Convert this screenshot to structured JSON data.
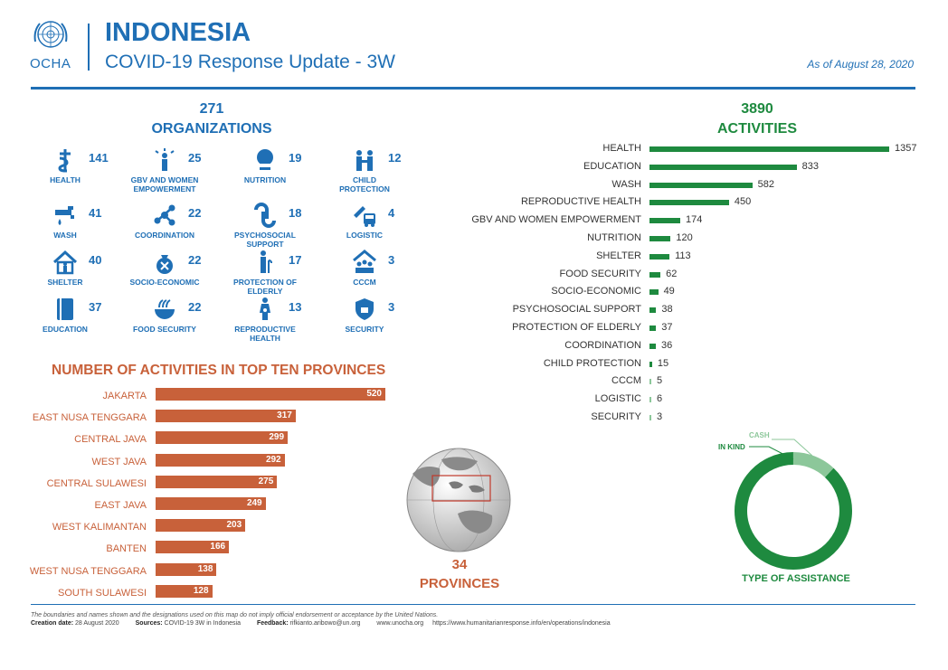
{
  "header": {
    "logo_text": "OCHA",
    "country": "INDONESIA",
    "subtitle": "COVID-19 Response Update - 3W",
    "date": "As of August 28, 2020"
  },
  "organizations": {
    "total": "271",
    "title": "ORGANIZATIONS",
    "items": [
      {
        "label": "HEALTH",
        "count": "141",
        "icon": "health-icon"
      },
      {
        "label": "GBV AND WOMEN EMPOWERMENT",
        "count": "25",
        "icon": "gbv-icon"
      },
      {
        "label": "NUTRITION",
        "count": "19",
        "icon": "nutrition-icon"
      },
      {
        "label": "CHILD PROTECTION",
        "count": "12",
        "icon": "child-protection-icon"
      },
      {
        "label": "WASH",
        "count": "41",
        "icon": "wash-icon"
      },
      {
        "label": "COORDINATION",
        "count": "22",
        "icon": "coordination-icon"
      },
      {
        "label": "PSYCHOSOCIAL SUPPORT",
        "count": "18",
        "icon": "psychosocial-icon"
      },
      {
        "label": "LOGISTIC",
        "count": "4",
        "icon": "logistic-icon"
      },
      {
        "label": "SHELTER",
        "count": "40",
        "icon": "shelter-icon"
      },
      {
        "label": "SOCIO-ECONOMIC",
        "count": "22",
        "icon": "socio-economic-icon"
      },
      {
        "label": "PROTECTION OF ELDERLY",
        "count": "17",
        "icon": "elderly-icon"
      },
      {
        "label": "CCCM",
        "count": "3",
        "icon": "cccm-icon"
      },
      {
        "label": "EDUCATION",
        "count": "37",
        "icon": "education-icon"
      },
      {
        "label": "FOOD SECURITY",
        "count": "22",
        "icon": "food-security-icon"
      },
      {
        "label": "REPRODUCTIVE HEALTH",
        "count": "13",
        "icon": "reproductive-health-icon"
      },
      {
        "label": "SECURITY",
        "count": "3",
        "icon": "security-icon"
      }
    ]
  },
  "activities": {
    "total": "3890",
    "title": "ACTIVITIES"
  },
  "provinces": {
    "title": "NUMBER OF ACTIVITIES IN TOP TEN PROVINCES",
    "count": "34",
    "label": "PROVINCES"
  },
  "assistance": {
    "title": "TYPE OF ASSISTANCE",
    "cash_label": "CASH",
    "inkind_label": "IN KIND",
    "cash_share": 0.12,
    "colors": {
      "inkind": "#1e8a3f",
      "cash": "#8cc79a"
    }
  },
  "footer": {
    "disclaimer": "The boundaries and names shown and the designations used on this map do not imply official endorsement or acceptance by the United Nations.",
    "creation_label": "Creation date:",
    "creation_value": "28 August 2020",
    "sources_label": "Sources:",
    "sources_value": "COVID-19 3W in Indonesia",
    "feedback_label": "Feedback:",
    "feedback_value": "rifkianto.aribowo@un.org",
    "site": "www.unocha.org",
    "url": "https://www.humanitarianresponse.info/en/operations/indonesia"
  },
  "colors": {
    "blue": "#1f6fb5",
    "green": "#1e8a3f",
    "orange": "#c8613a"
  },
  "chart_data": [
    {
      "type": "bar",
      "orientation": "horizontal",
      "title": "ACTIVITIES",
      "categories": [
        "HEALTH",
        "EDUCATION",
        "WASH",
        "REPRODUCTIVE HEALTH",
        "GBV AND WOMEN EMPOWERMENT",
        "NUTRITION",
        "SHELTER",
        "FOOD SECURITY",
        "SOCIO-ECONOMIC",
        "PSYCHOSOCIAL SUPPORT",
        "PROTECTION OF ELDERLY",
        "COORDINATION",
        "CHILD PROTECTION",
        "CCCM",
        "LOGISTIC",
        "SECURITY"
      ],
      "values": [
        1357,
        833,
        582,
        450,
        174,
        120,
        113,
        62,
        49,
        38,
        37,
        36,
        15,
        5,
        6,
        3
      ]
    },
    {
      "type": "bar",
      "orientation": "horizontal",
      "title": "NUMBER OF ACTIVITIES IN TOP TEN PROVINCES",
      "categories": [
        "JAKARTA",
        "EAST NUSA TENGGARA",
        "CENTRAL JAVA",
        "WEST JAVA",
        "CENTRAL SULAWESI",
        "EAST JAVA",
        "WEST KALIMANTAN",
        "BANTEN",
        "WEST NUSA TENGGARA",
        "SOUTH SULAWESI"
      ],
      "values": [
        520,
        317,
        299,
        292,
        275,
        249,
        203,
        166,
        138,
        128
      ]
    },
    {
      "type": "pie",
      "title": "TYPE OF ASSISTANCE",
      "categories": [
        "IN KIND",
        "CASH"
      ],
      "values": [
        88,
        12
      ]
    }
  ]
}
